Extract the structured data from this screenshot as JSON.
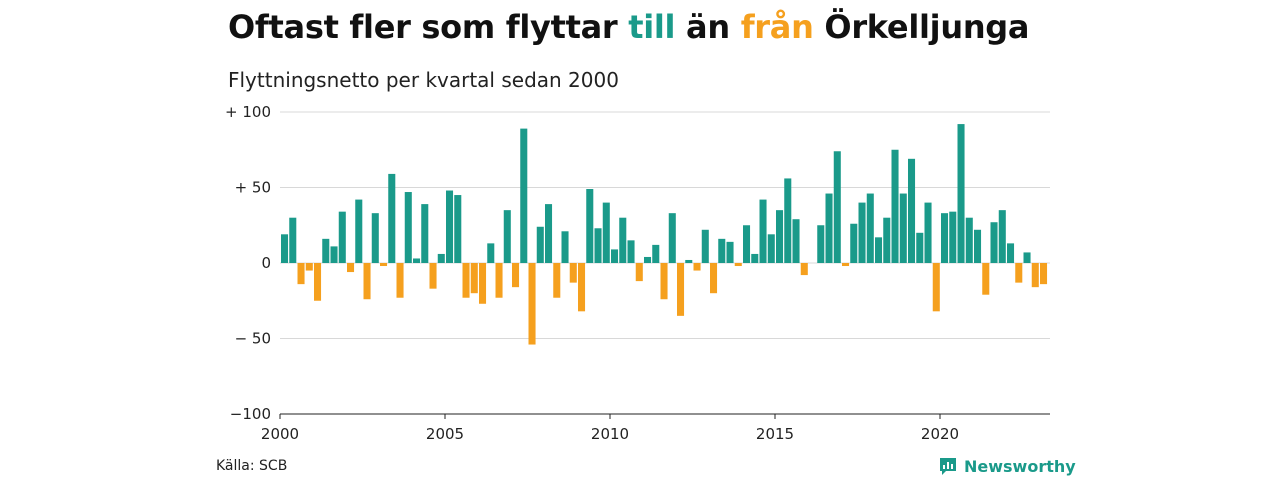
{
  "header": {
    "title_part1": "Oftast fler som flyttar ",
    "title_till": "till",
    "title_part2": " än ",
    "title_fran": "från",
    "title_part3": " Örkelljunga",
    "subtitle": "Flyttningsnetto per kvartal sedan 2000"
  },
  "footer": {
    "source": "Källa: SCB",
    "brand": "Newsworthy"
  },
  "colors": {
    "positive": "#1a9a8a",
    "negative": "#f5a01e",
    "grid": "#d8d8d8"
  },
  "chart_data": {
    "type": "bar",
    "title": "Oftast fler som flyttar till än från Örkelljunga",
    "subtitle": "Flyttningsnetto per kvartal sedan 2000",
    "xlabel": "",
    "ylabel": "",
    "ylim": [
      -100,
      100
    ],
    "grid": true,
    "y_ticks": [
      100,
      50,
      0,
      -50,
      -100
    ],
    "y_tick_labels": [
      "+ 100",
      "+  50",
      "0",
      "− 50",
      "−100"
    ],
    "x_ticks": [
      2000,
      2005,
      2010,
      2015,
      2020
    ],
    "x_tick_labels": [
      "2000",
      "2005",
      "2010",
      "2015",
      "2020"
    ],
    "x_start": 2000,
    "quarters_per_year": 4,
    "values": [
      19,
      30,
      -14,
      -5,
      -25,
      16,
      11,
      34,
      -6,
      42,
      -24,
      33,
      -2,
      59,
      -23,
      47,
      3,
      39,
      -17,
      6,
      48,
      45,
      -23,
      -20,
      -27,
      13,
      -23,
      35,
      -16,
      89,
      -54,
      24,
      39,
      -23,
      21,
      -13,
      -32,
      49,
      23,
      40,
      9,
      30,
      15,
      -12,
      4,
      12,
      -24,
      33,
      -35,
      2,
      -5,
      22,
      -20,
      16,
      14,
      -2,
      25,
      6,
      42,
      19,
      35,
      56,
      29,
      -8,
      0,
      25,
      46,
      74,
      -2,
      26,
      40,
      46,
      17,
      30,
      75,
      46,
      69,
      20,
      40,
      -32,
      33,
      34,
      92,
      30,
      22,
      -21,
      27,
      35,
      13,
      -13,
      7,
      -16,
      -14
    ]
  }
}
